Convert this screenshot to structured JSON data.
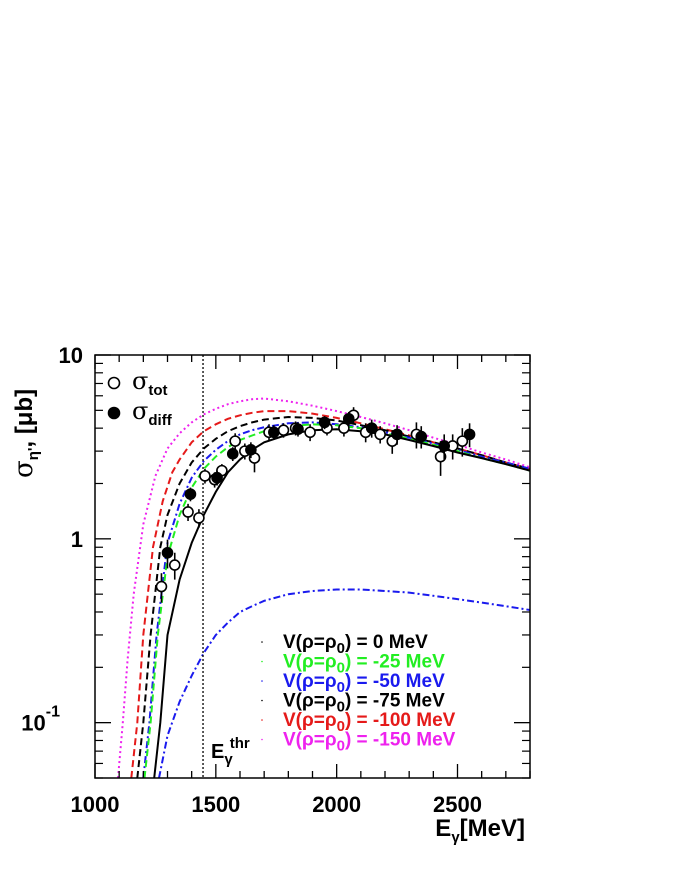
{
  "chart_data": {
    "type": "line",
    "xlabel": {
      "main": "E",
      "sub": "γ",
      "rest": "[MeV]"
    },
    "ylabel": {
      "main": "σ",
      "sub": "η'",
      "rest": ", [μb]"
    },
    "xlim": [
      1000,
      2800
    ],
    "ylim": [
      0.05,
      10
    ],
    "yscale": "log",
    "grid": false,
    "x_ticks": [
      {
        "value": 1000,
        "label": "1000"
      },
      {
        "value": 1500,
        "label": "1500"
      },
      {
        "value": 2000,
        "label": "2000"
      },
      {
        "value": 2500,
        "label": "2500"
      }
    ],
    "y_ticks": [
      {
        "value": 10,
        "label": "10"
      },
      {
        "value": 1,
        "label": "1"
      },
      {
        "value": 0.1,
        "label": "10",
        "exp": "-1"
      }
    ],
    "threshold": {
      "x": 1447,
      "label_main": "E",
      "label_sub": "γ",
      "label_sup": "thr"
    },
    "marker_legend": [
      {
        "symbol": "open-circle",
        "main": "σ",
        "sub": "tot"
      },
      {
        "symbol": "filled-circle",
        "main": "σ",
        "sub": "diff"
      }
    ],
    "series": [
      {
        "label_pre": "V(ρ=ρ",
        "label_sub": "0",
        "label_post": ") = 0 MeV",
        "color": "#000000",
        "dash": "solid",
        "x": [
          1245,
          1270,
          1300,
          1350,
          1400,
          1450,
          1500,
          1550,
          1600,
          1650,
          1700,
          1800,
          1900,
          2000,
          2100,
          2200,
          2300,
          2400,
          2500,
          2600,
          2700,
          2800
        ],
        "y": [
          0.05,
          0.1,
          0.3,
          0.6,
          0.95,
          1.35,
          1.8,
          2.3,
          2.7,
          3.05,
          3.35,
          3.7,
          3.9,
          3.95,
          3.85,
          3.7,
          3.45,
          3.2,
          2.95,
          2.75,
          2.55,
          2.35
        ]
      },
      {
        "label_pre": "V(ρ=ρ",
        "label_sub": "0",
        "label_post": ") = -25 MeV",
        "color": "#22ee22",
        "dash": "dash",
        "x": [
          1205,
          1230,
          1260,
          1300,
          1350,
          1400,
          1450,
          1500,
          1550,
          1600,
          1650,
          1700,
          1800,
          1900,
          2000,
          2100,
          2200,
          2300,
          2400,
          2500,
          2600,
          2700,
          2800
        ],
        "y": [
          0.05,
          0.1,
          0.3,
          0.8,
          1.35,
          1.9,
          2.4,
          2.8,
          3.15,
          3.45,
          3.65,
          3.85,
          4.1,
          4.2,
          4.15,
          4.0,
          3.75,
          3.5,
          3.25,
          3.0,
          2.75,
          2.55,
          2.35
        ]
      },
      {
        "label_pre": "V(ρ=ρ",
        "label_sub": "0",
        "label_post": ") = -50 MeV",
        "color": "#1a1aee",
        "dash": "dashdot",
        "x": [
          1200,
          1225,
          1255,
          1300,
          1350,
          1400,
          1450,
          1500,
          1550,
          1600,
          1650,
          1700,
          1800,
          1900,
          2000,
          2100,
          2200,
          2300,
          2400,
          2500,
          2600,
          2700,
          2800
        ],
        "y": [
          0.05,
          0.1,
          0.3,
          0.95,
          1.55,
          2.15,
          2.65,
          3.05,
          3.4,
          3.7,
          3.9,
          4.05,
          4.25,
          4.3,
          4.2,
          4.05,
          3.8,
          3.55,
          3.3,
          3.05,
          2.8,
          2.6,
          2.4
        ]
      },
      {
        "label_pre": "V(ρ=ρ",
        "label_sub": "0",
        "label_post": ") = -75 MeV",
        "color": "#000000",
        "dash": "dash",
        "x": [
          1175,
          1200,
          1230,
          1270,
          1300,
          1350,
          1400,
          1450,
          1500,
          1550,
          1600,
          1650,
          1700,
          1800,
          1900,
          2000,
          2100,
          2200,
          2300,
          2400,
          2500,
          2600,
          2700,
          2800
        ],
        "y": [
          0.05,
          0.1,
          0.3,
          0.9,
          1.35,
          2.0,
          2.6,
          3.1,
          3.5,
          3.85,
          4.1,
          4.3,
          4.45,
          4.6,
          4.55,
          4.4,
          4.15,
          3.9,
          3.6,
          3.35,
          3.1,
          2.85,
          2.6,
          2.4
        ]
      },
      {
        "label_pre": "V(ρ=ρ",
        "label_sub": "0",
        "label_post": ") = -100 MeV",
        "color": "#e51a1a",
        "dash": "dash",
        "x": [
          1150,
          1175,
          1200,
          1240,
          1280,
          1320,
          1350,
          1400,
          1450,
          1500,
          1550,
          1600,
          1650,
          1700,
          1800,
          1900,
          2000,
          2100,
          2200,
          2300,
          2400,
          2500,
          2600,
          2700,
          2800
        ],
        "y": [
          0.05,
          0.1,
          0.3,
          0.9,
          1.6,
          2.3,
          2.7,
          3.35,
          3.85,
          4.2,
          4.5,
          4.7,
          4.85,
          4.95,
          4.95,
          4.8,
          4.55,
          4.25,
          3.95,
          3.65,
          3.35,
          3.1,
          2.85,
          2.6,
          2.4
        ]
      },
      {
        "label_pre": "V(ρ=ρ",
        "label_sub": "0",
        "label_post": ") = -150 MeV",
        "color": "#ee22ee",
        "dash": "dot",
        "x": [
          1095,
          1115,
          1135,
          1160,
          1200,
          1250,
          1300,
          1350,
          1400,
          1450,
          1500,
          1550,
          1600,
          1650,
          1700,
          1800,
          1900,
          2000,
          2100,
          2200,
          2300,
          2400,
          2500,
          2600,
          2700,
          2800
        ],
        "y": [
          0.05,
          0.1,
          0.22,
          0.5,
          1.2,
          2.2,
          3.1,
          3.75,
          4.3,
          4.75,
          5.1,
          5.4,
          5.6,
          5.75,
          5.8,
          5.6,
          5.3,
          4.95,
          4.6,
          4.25,
          3.9,
          3.55,
          3.25,
          2.95,
          2.7,
          2.45
        ]
      }
    ],
    "blue_lower_curve": {
      "color": "#1a1aee",
      "dash": "dashdot",
      "x": [
        1265,
        1300,
        1350,
        1400,
        1450,
        1500,
        1550,
        1600,
        1650,
        1700,
        1800,
        1900,
        2000,
        2100,
        2200,
        2300,
        2400,
        2500,
        2600,
        2700,
        2800
      ],
      "y": [
        0.05,
        0.085,
        0.13,
        0.18,
        0.24,
        0.3,
        0.35,
        0.4,
        0.43,
        0.46,
        0.5,
        0.52,
        0.53,
        0.53,
        0.52,
        0.51,
        0.49,
        0.47,
        0.45,
        0.43,
        0.41
      ]
    },
    "data_open": {
      "x": [
        1275,
        1330,
        1385,
        1430,
        1455,
        1495,
        1525,
        1580,
        1620,
        1660,
        1720,
        1780,
        1830,
        1890,
        1960,
        2030,
        2070,
        2120,
        2180,
        2230,
        2330,
        2430,
        2480,
        2520
      ],
      "y": [
        0.55,
        0.72,
        1.4,
        1.3,
        2.2,
        2.1,
        2.35,
        3.4,
        3.0,
        2.75,
        3.8,
        3.9,
        4.0,
        3.8,
        4.0,
        4.0,
        4.7,
        3.8,
        3.7,
        3.4,
        3.7,
        2.8,
        3.2,
        3.4
      ],
      "err": [
        0.1,
        0.12,
        0.15,
        0.15,
        0.2,
        0.2,
        0.2,
        0.35,
        0.3,
        0.45,
        0.4,
        0.35,
        0.35,
        0.4,
        0.35,
        0.4,
        0.5,
        0.45,
        0.4,
        0.5,
        0.6,
        0.6,
        0.5,
        0.6
      ]
    },
    "data_filled": {
      "x": [
        1300,
        1395,
        1505,
        1570,
        1645,
        1740,
        1840,
        1950,
        2050,
        2145,
        2250,
        2350,
        2445,
        2550
      ],
      "y": [
        0.84,
        1.75,
        2.15,
        2.9,
        3.05,
        3.8,
        3.95,
        4.3,
        4.5,
        4.0,
        3.7,
        3.6,
        3.2,
        3.7
      ],
      "err": [
        0.15,
        0.15,
        0.2,
        0.25,
        0.3,
        0.35,
        0.35,
        0.35,
        0.4,
        0.45,
        0.45,
        0.5,
        0.5,
        0.55
      ]
    }
  }
}
